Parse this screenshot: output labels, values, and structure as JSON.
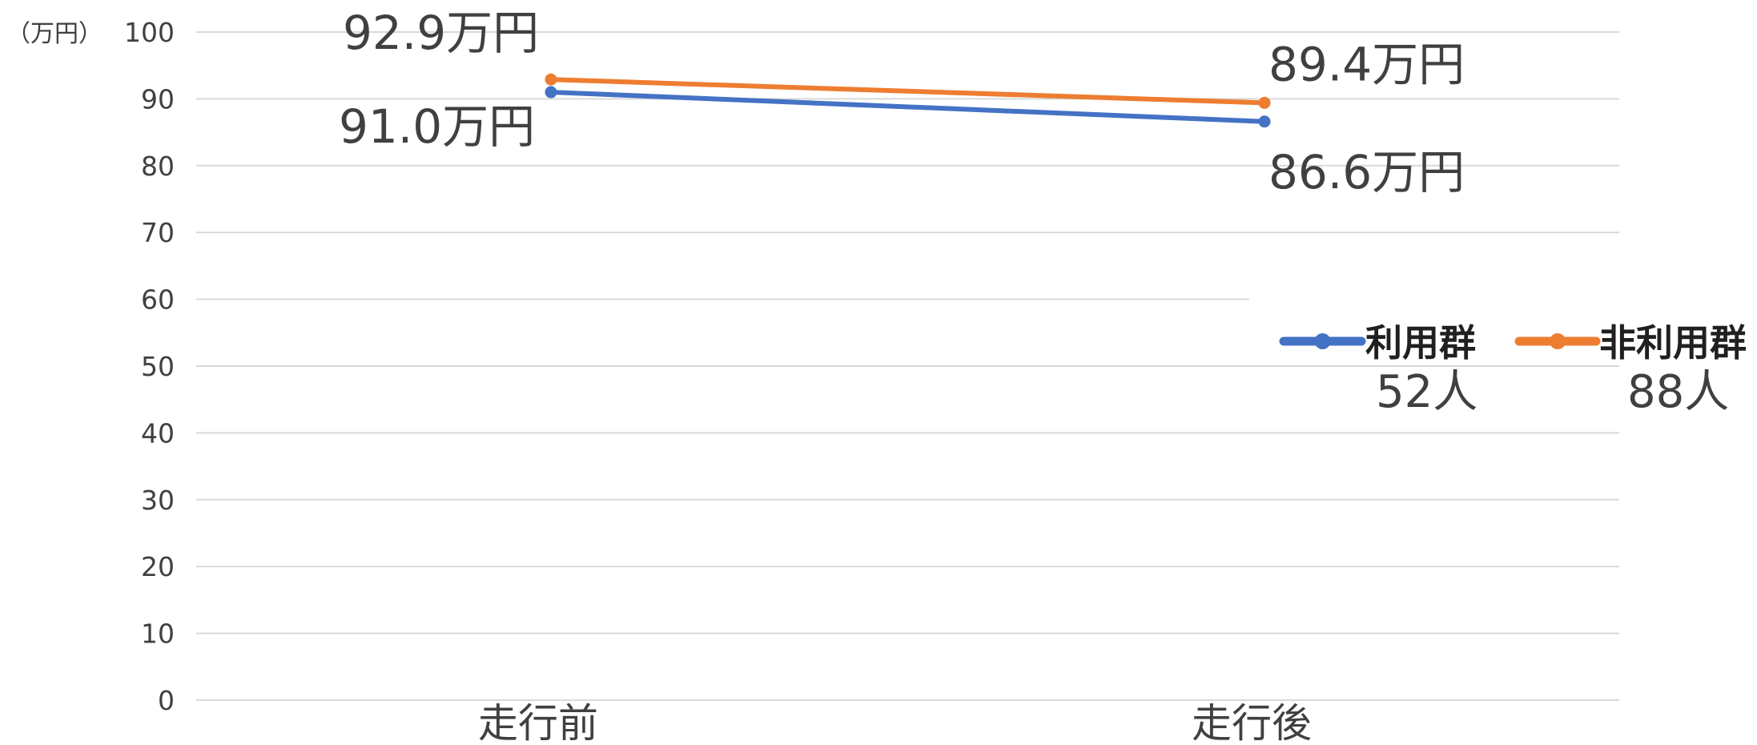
{
  "chart_data": {
    "type": "line",
    "y_unit_label": "（万円）",
    "categories": [
      "走行前",
      "走行後"
    ],
    "ylim": [
      0,
      100
    ],
    "yticks": [
      0,
      10,
      20,
      30,
      40,
      50,
      60,
      70,
      80,
      90,
      100
    ],
    "grid": true,
    "legend_position": "right",
    "series": [
      {
        "name": "利用群",
        "count_label": "52人",
        "color": "#4472C4",
        "values": [
          91.0,
          86.6
        ],
        "data_labels": [
          "91.0万円",
          "86.6万円"
        ]
      },
      {
        "name": "非利用群",
        "count_label": "88人",
        "color": "#ED7D31",
        "values": [
          92.9,
          89.4
        ],
        "data_labels": [
          "92.9万円",
          "89.4万円"
        ]
      }
    ]
  }
}
